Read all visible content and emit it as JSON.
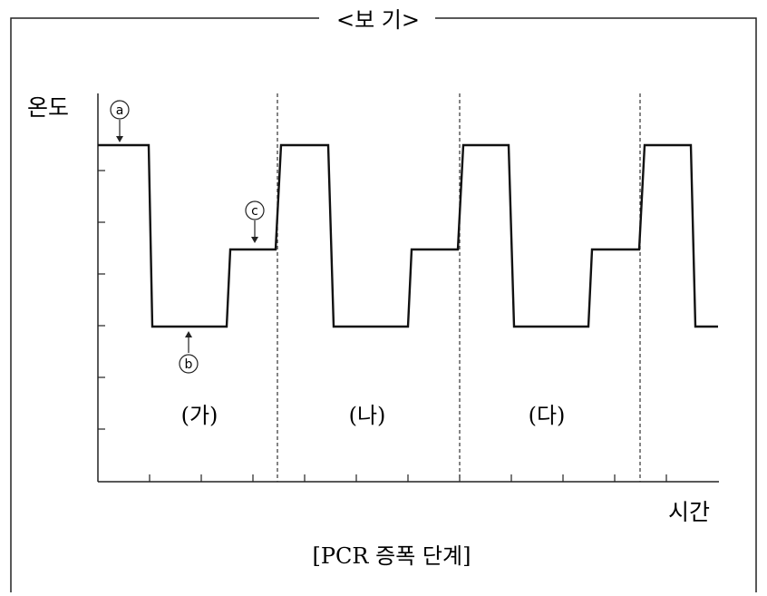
{
  "box_title": "<보 기>",
  "y_axis_label": "온도",
  "x_axis_label": "시간",
  "caption": "[PCR 증폭 단계]",
  "markers": {
    "a": "a",
    "b": "b",
    "c": "c"
  },
  "phases": [
    {
      "label": "(가)"
    },
    {
      "label": "(나)"
    },
    {
      "label": "(다)"
    }
  ]
}
